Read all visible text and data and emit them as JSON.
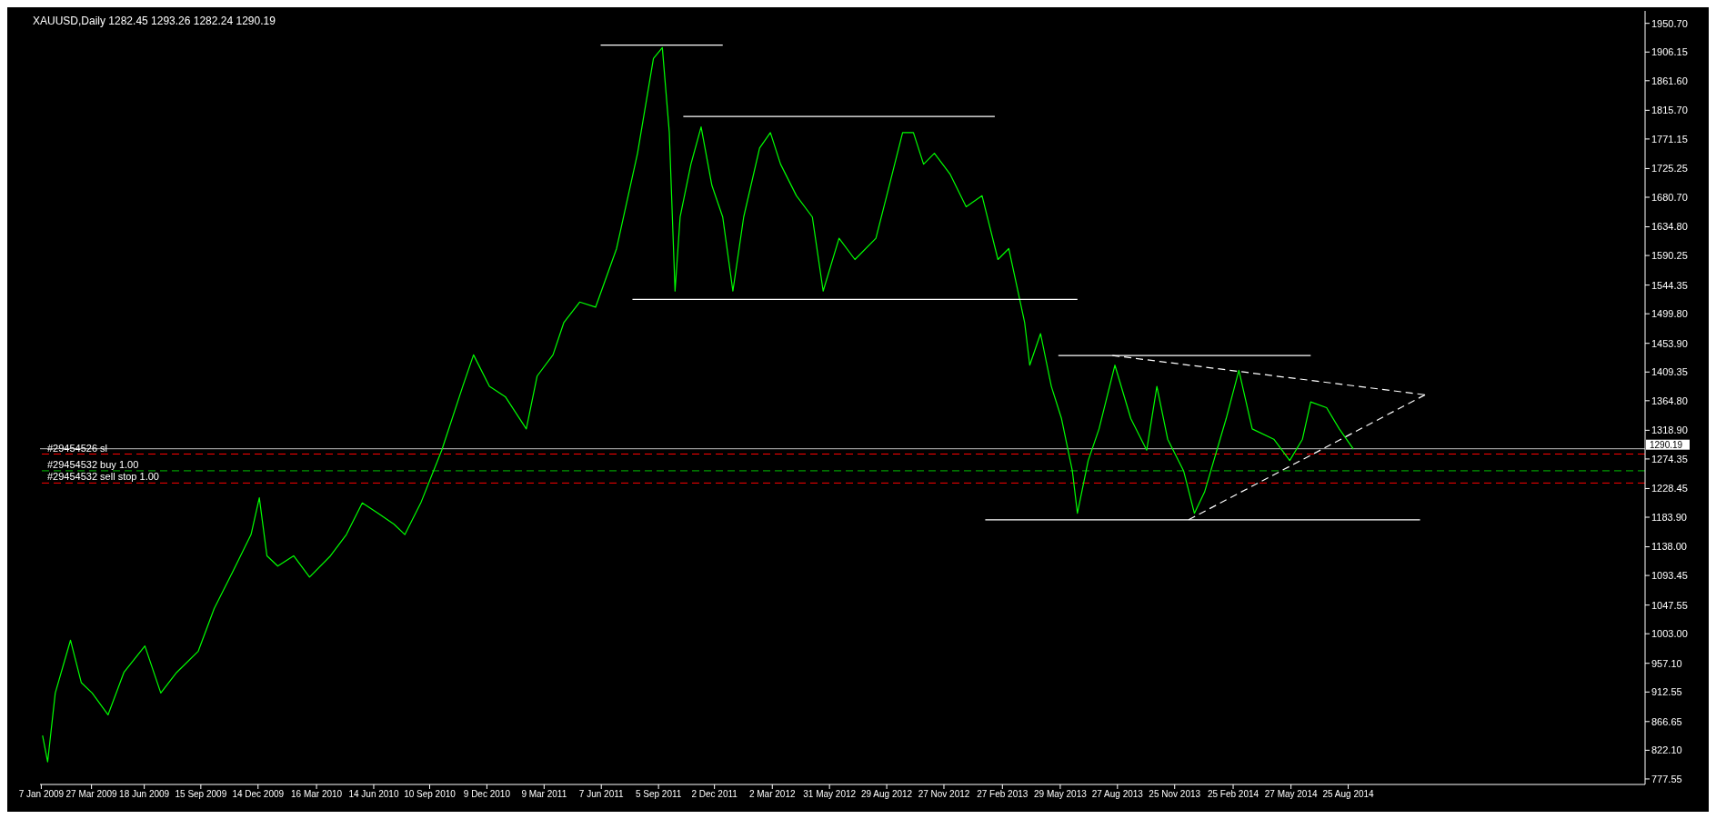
{
  "chart_data": {
    "type": "line",
    "title": "XAUUSD,Daily  1282.45 1293.26 1282.24 1290.19",
    "series": [
      {
        "color": "#00ff00",
        "x": [
          "2009-01-09",
          "2009-01-17",
          "2009-01-29",
          "2009-02-22",
          "2009-03-11",
          "2009-03-28",
          "2009-04-22",
          "2009-05-17",
          "2009-06-19",
          "2009-07-14",
          "2009-08-08",
          "2009-09-11",
          "2009-10-06",
          "2009-10-31",
          "2009-12-03",
          "2009-12-16",
          "2009-12-28",
          "2010-01-14",
          "2010-02-08",
          "2010-03-05",
          "2010-04-07",
          "2010-05-02",
          "2010-05-27",
          "2010-06-21",
          "2010-07-16",
          "2010-08-02",
          "2010-08-27",
          "2010-09-29",
          "2010-11-01",
          "2010-11-18",
          "2010-12-13",
          "2011-01-07",
          "2011-02-09",
          "2011-02-26",
          "2011-03-23",
          "2011-04-09",
          "2011-05-04",
          "2011-05-29",
          "2011-07-01",
          "2011-08-03",
          "2011-08-28",
          "2011-09-11",
          "2011-09-22",
          "2011-10-01",
          "2011-10-09",
          "2011-10-26",
          "2011-11-11",
          "2011-11-28",
          "2011-12-15",
          "2011-12-31",
          "2012-01-17",
          "2012-02-11",
          "2012-02-28",
          "2012-03-15",
          "2012-04-09",
          "2012-05-04",
          "2012-05-21",
          "2012-06-15",
          "2012-07-10",
          "2012-08-12",
          "2012-08-29",
          "2012-09-23",
          "2012-10-10",
          "2012-10-26",
          "2012-11-12",
          "2012-12-07",
          "2013-01-01",
          "2013-01-26",
          "2013-02-20",
          "2013-03-09",
          "2013-04-03",
          "2013-04-11",
          "2013-04-28",
          "2013-05-15",
          "2013-05-31",
          "2013-06-17",
          "2013-06-25",
          "2013-07-12",
          "2013-07-29",
          "2013-08-23",
          "2013-09-17",
          "2013-10-12",
          "2013-10-28",
          "2013-11-14",
          "2013-12-09",
          "2013-12-26",
          "2014-01-11",
          "2014-02-14",
          "2014-03-06",
          "2014-03-27",
          "2014-04-30",
          "2014-05-25",
          "2014-06-14",
          "2014-06-27",
          "2014-07-22",
          "2014-08-11",
          "2014-09-02"
        ],
        "values": [
          845,
          804,
          911,
          993,
          927,
          911,
          877,
          943,
          984,
          911,
          943,
          976,
          1042,
          1091,
          1157,
          1214,
          1124,
          1108,
          1124,
          1091,
          1124,
          1157,
          1206,
          1190,
          1173,
          1157,
          1206,
          1288,
          1387,
          1436,
          1387,
          1371,
          1321,
          1403,
          1436,
          1486,
          1518,
          1510,
          1601,
          1749,
          1896,
          1913,
          1781,
          1535,
          1650,
          1732,
          1790,
          1699,
          1650,
          1535,
          1650,
          1757,
          1781,
          1732,
          1683,
          1650,
          1535,
          1617,
          1584,
          1617,
          1683,
          1781,
          1781,
          1732,
          1749,
          1716,
          1666,
          1683,
          1584,
          1601,
          1486,
          1420,
          1469,
          1387,
          1337,
          1256,
          1190,
          1272,
          1321,
          1420,
          1337,
          1288,
          1387,
          1305,
          1256,
          1190,
          1223,
          1337,
          1412,
          1321,
          1305,
          1272,
          1305,
          1363,
          1354,
          1321,
          1290
        ]
      },
      {
        "color": "#ffffff",
        "x": [
          "2011-06-06",
          "2011-12-15"
        ],
        "values": [
          1917,
          1917
        ]
      },
      {
        "color": "#ffffff",
        "x": [
          "2011-10-14",
          "2013-02-15"
        ],
        "values": [
          1806,
          1806
        ]
      },
      {
        "color": "#ffffff",
        "x": [
          "2011-07-26",
          "2013-06-25"
        ],
        "values": [
          1522,
          1522
        ]
      },
      {
        "color": "#ffffff",
        "x": [
          "2013-05-26",
          "2014-06-27"
        ],
        "values": [
          1435,
          1435
        ]
      },
      {
        "color": "#ffffff",
        "x": [
          "2013-01-31",
          "2014-12-16"
        ],
        "values": [
          1180,
          1180
        ]
      },
      {
        "color": "#ffffff",
        "line_style": "dashed",
        "x": [
          "2013-08-19",
          "2014-12-24"
        ],
        "values": [
          1435,
          1374
        ]
      },
      {
        "color": "#ffffff",
        "line_style": "dashed",
        "x": [
          "2013-12-17",
          "2014-12-24"
        ],
        "values": [
          1180,
          1374
        ]
      }
    ],
    "xlim": [
      "2009-01-05",
      "2015-12-05"
    ],
    "xticks": [
      {
        "value": "2009-01-07",
        "label": "7 Jan 2009"
      },
      {
        "value": "2009-03-27",
        "label": "27 Mar 2009"
      },
      {
        "value": "2009-06-18",
        "label": "18 Jun 2009"
      },
      {
        "value": "2009-09-15",
        "label": "15 Sep 2009"
      },
      {
        "value": "2009-12-14",
        "label": "14 Dec 2009"
      },
      {
        "value": "2010-03-16",
        "label": "16 Mar 2010"
      },
      {
        "value": "2010-06-14",
        "label": "14 Jun 2010"
      },
      {
        "value": "2010-09-10",
        "label": "10 Sep 2010"
      },
      {
        "value": "2010-12-09",
        "label": "9 Dec 2010"
      },
      {
        "value": "2011-03-09",
        "label": "9 Mar 2011"
      },
      {
        "value": "2011-06-07",
        "label": "7 Jun 2011"
      },
      {
        "value": "2011-09-05",
        "label": "5 Sep 2011"
      },
      {
        "value": "2011-12-02",
        "label": "2 Dec 2011"
      },
      {
        "value": "2012-03-02",
        "label": "2 Mar 2012"
      },
      {
        "value": "2012-05-31",
        "label": "31 May 2012"
      },
      {
        "value": "2012-08-29",
        "label": "29 Aug 2012"
      },
      {
        "value": "2012-11-27",
        "label": "27 Nov 2012"
      },
      {
        "value": "2013-02-27",
        "label": "27 Feb 2013"
      },
      {
        "value": "2013-05-29",
        "label": "29 May 2013"
      },
      {
        "value": "2013-08-27",
        "label": "27 Aug 2013"
      },
      {
        "value": "2013-11-25",
        "label": "25 Nov 2013"
      },
      {
        "value": "2014-02-25",
        "label": "25 Feb 2014"
      },
      {
        "value": "2014-05-27",
        "label": "27 May 2014"
      },
      {
        "value": "2014-08-25",
        "label": "25 Aug 2014"
      }
    ],
    "ylim": [
      769,
      1970
    ],
    "yticks": [
      777.55,
      {
        "value": 822.1,
        "label": "822.10"
      },
      866.65,
      912.55,
      {
        "value": 957.1,
        "label": "957.10"
      },
      {
        "value": 1003,
        "label": "1003.00"
      },
      1047.55,
      1093.45,
      {
        "value": 1138,
        "label": "1138.00"
      },
      {
        "value": 1183.9,
        "label": "1183.90"
      },
      1228.45,
      1274.35,
      {
        "value": 1318.9,
        "label": "1318.90"
      },
      {
        "value": 1364.8,
        "label": "1364.80"
      },
      1409.35,
      {
        "value": 1453.9,
        "label": "1453.90"
      },
      {
        "value": 1499.8,
        "label": "1499.80"
      },
      1544.35,
      1590.25,
      {
        "value": 1634.8,
        "label": "1634.80"
      },
      {
        "value": 1680.7,
        "label": "1680.70"
      },
      1725.25,
      1771.15,
      {
        "value": 1815.7,
        "label": "1815.70"
      },
      {
        "value": 1861.6,
        "label": "1861.60"
      },
      1906.15,
      {
        "value": 1950.7,
        "label": "1950.70"
      }
    ],
    "ref_lines": [
      {
        "axis": "y",
        "value": 1290.19,
        "label": "1290.19",
        "color": "#c0c0c0",
        "line_style": "solid"
      },
      {
        "axis": "y",
        "value": 1282,
        "label": "#29454526 sl",
        "color": "#ff0000",
        "line_style": "dashed"
      },
      {
        "axis": "y",
        "value": 1256,
        "label": "#29454532 buy 1.00",
        "color": "#00c000",
        "line_style": "dashed"
      },
      {
        "axis": "y",
        "value": 1237,
        "label": "#29454532 sell stop 1.00",
        "color": "#ff0000",
        "line_style": "dashed"
      }
    ],
    "grid": false
  }
}
